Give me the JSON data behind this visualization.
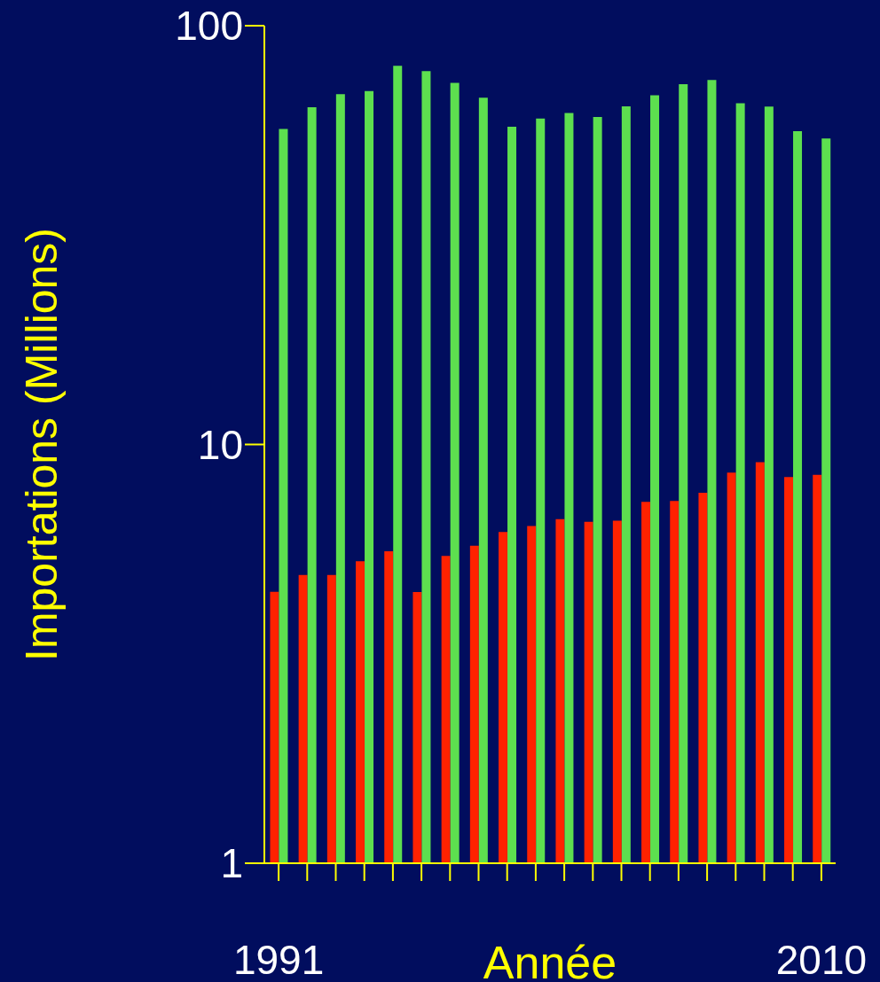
{
  "chart_data": {
    "type": "bar",
    "xlabel": "Année",
    "ylabel": "Importations (Millions)",
    "categories": [
      "1991",
      null,
      null,
      null,
      null,
      null,
      null,
      null,
      null,
      null,
      null,
      null,
      null,
      null,
      null,
      null,
      null,
      null,
      null,
      "2010"
    ],
    "series": [
      {
        "color": "#ff2200",
        "values": [
          4.45,
          4.88,
          4.88,
          5.26,
          5.56,
          4.44,
          5.42,
          5.73,
          6.18,
          6.39,
          6.63,
          6.54,
          6.58,
          7.29,
          7.33,
          7.67,
          8.57,
          9.07,
          8.36,
          8.46
        ]
      },
      {
        "color": "#5ddf4f",
        "values": [
          56.7,
          63.9,
          68.6,
          69.8,
          80.2,
          77.9,
          73.0,
          67.3,
          57.4,
          60.0,
          61.9,
          60.5,
          64.2,
          68.2,
          72.5,
          74.2,
          65.3,
          64.1,
          56.0,
          53.8
        ]
      }
    ],
    "log": "y",
    "ylim": [
      1,
      100
    ],
    "yticks": [
      1,
      10,
      100
    ],
    "grid": false,
    "legend": false
  }
}
